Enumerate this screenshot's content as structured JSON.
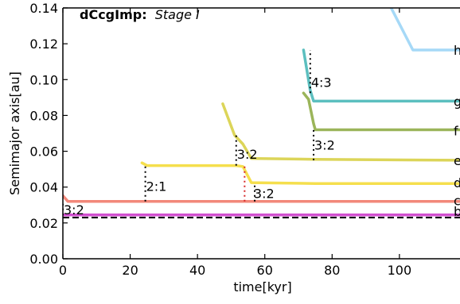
{
  "chart_data": {
    "type": "line",
    "title_bold": "dCcgImp:",
    "title_italic": "Stage I",
    "xlabel": "time[kyr]",
    "ylabel": "Semimajor axis[au]",
    "xlim": [
      0,
      118
    ],
    "ylim": [
      0.0,
      0.14
    ],
    "x_ticks": [
      0,
      20,
      40,
      60,
      80,
      100
    ],
    "x_tick_labels": [
      "0",
      "20",
      "40",
      "60",
      "80",
      "100"
    ],
    "y_ticks": [
      0.0,
      0.02,
      0.04,
      0.06,
      0.08,
      0.1,
      0.12,
      0.14
    ],
    "y_tick_labels": [
      "0.00",
      "0.02",
      "0.04",
      "0.06",
      "0.08",
      "0.10",
      "0.12",
      "0.14"
    ],
    "grid": false,
    "reference_line": {
      "y": 0.023,
      "style": "dashed",
      "color": "#000000"
    },
    "series": [
      {
        "name": "h",
        "color": "#a6d9f7",
        "points": [
          [
            97,
            0.142
          ],
          [
            104,
            0.1165
          ],
          [
            118,
            0.1165
          ]
        ]
      },
      {
        "name": "g",
        "color": "#5cbfbf",
        "points": [
          [
            71.5,
            0.1165
          ],
          [
            73.5,
            0.094
          ],
          [
            74.5,
            0.088
          ],
          [
            118,
            0.088
          ]
        ]
      },
      {
        "name": "f",
        "color": "#9bb55a",
        "points": [
          [
            71.5,
            0.0925
          ],
          [
            73,
            0.089
          ],
          [
            74.5,
            0.0755
          ],
          [
            75,
            0.072
          ],
          [
            118,
            0.072
          ]
        ]
      },
      {
        "name": "e",
        "color": "#dcd559",
        "points": [
          [
            47.5,
            0.0865
          ],
          [
            51,
            0.069
          ],
          [
            53.5,
            0.064
          ],
          [
            56,
            0.056
          ],
          [
            75,
            0.0555
          ],
          [
            118,
            0.055
          ]
        ]
      },
      {
        "name": "d",
        "color": "#f5df4d",
        "points": [
          [
            23.5,
            0.0535
          ],
          [
            25,
            0.052
          ],
          [
            51.5,
            0.052
          ],
          [
            53.5,
            0.0515
          ],
          [
            56,
            0.0425
          ],
          [
            75,
            0.042
          ],
          [
            118,
            0.042
          ]
        ]
      },
      {
        "name": "c",
        "color": "#f2887a",
        "points": [
          [
            0,
            0.0352
          ],
          [
            1.5,
            0.032
          ],
          [
            118,
            0.032
          ]
        ]
      },
      {
        "name": "b",
        "color": "#d14fcf",
        "points": [
          [
            0,
            0.0245
          ],
          [
            118,
            0.0245
          ]
        ]
      }
    ],
    "planet_labels": [
      {
        "text": "h",
        "y": 0.1165
      },
      {
        "text": "g",
        "y": 0.088
      },
      {
        "text": "f",
        "y": 0.0715
      },
      {
        "text": "e",
        "y": 0.055
      },
      {
        "text": "d",
        "y": 0.0425
      },
      {
        "text": "c",
        "y": 0.0325
      },
      {
        "text": "b",
        "y": 0.0265
      }
    ],
    "resonance_markers": [
      {
        "x": 24.5,
        "y_from": 0.032,
        "y_to": 0.052,
        "color": "#000000",
        "text": "2:1",
        "text_x": 24.5,
        "text_y": 0.0405
      },
      {
        "x": 51.5,
        "y_from": 0.052,
        "y_to": 0.069,
        "color": "#000000",
        "text": "3:2",
        "text_x": 51.5,
        "text_y": 0.0585
      },
      {
        "x": 54,
        "y_from": 0.032,
        "y_to": 0.052,
        "color": "#d62728",
        "text": "",
        "text_x": 0,
        "text_y": 0
      },
      {
        "x": 57,
        "y_from": 0.032,
        "y_to": 0.0425,
        "color": "#000000",
        "text": "3:2",
        "text_x": 56.5,
        "text_y": 0.0365
      },
      {
        "x": 73.5,
        "y_from": 0.0925,
        "y_to": 0.1165,
        "color": "#000000",
        "text": "4:3",
        "text_x": 73.5,
        "text_y": 0.0985
      },
      {
        "x": 74.5,
        "y_from": 0.055,
        "y_to": 0.0725,
        "color": "#000000",
        "text": "3:2",
        "text_x": 74.5,
        "text_y": 0.0635
      },
      {
        "x": 0.0,
        "y_from": 0.0245,
        "y_to": 0.032,
        "color": "#000000",
        "text": "3:2",
        "text_x": 0.0,
        "text_y": 0.0275
      }
    ]
  }
}
